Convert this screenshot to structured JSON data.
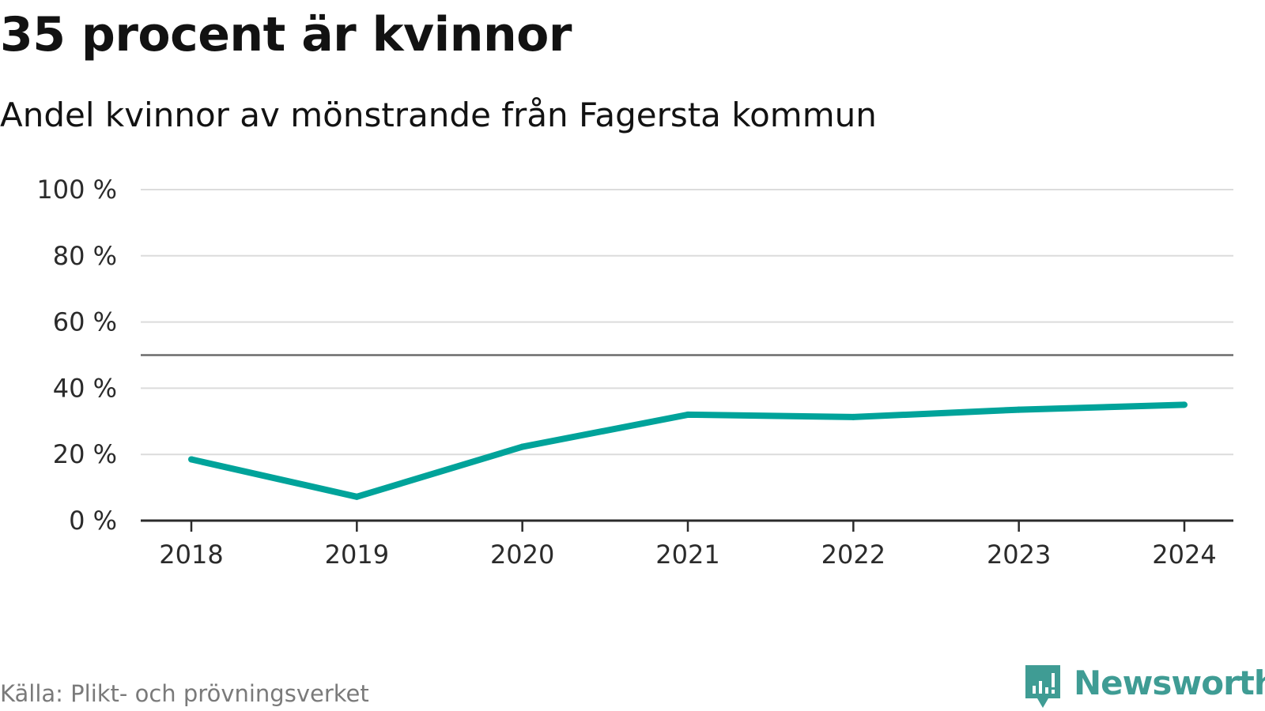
{
  "header": {
    "title": "35 procent är kvinnor",
    "subtitle": "Andel kvinnor av mönstrande från Fagersta kommun"
  },
  "footer": {
    "source": "Källa: Plikt- och prövningsverket",
    "brand": "Newsworthy",
    "brand_icon": "newsworthy-logo-icon"
  },
  "colors": {
    "series": "#00a39a",
    "grid": "#dcdcdc",
    "reference_line": "#6b6b6b",
    "axis": "#2b2b2b",
    "brand": "#3f9c94"
  },
  "chart_data": {
    "type": "line",
    "title": "35 procent är kvinnor",
    "subtitle": "Andel kvinnor av mönstrande från Fagersta kommun",
    "xlabel": "",
    "ylabel": "",
    "x": [
      "2018",
      "2019",
      "2020",
      "2021",
      "2022",
      "2023",
      "2024"
    ],
    "series": [
      {
        "name": "Andel kvinnor",
        "values": [
          18.5,
          7.2,
          22.3,
          32.0,
          31.3,
          33.5,
          35.0
        ]
      }
    ],
    "ylim": [
      0,
      100
    ],
    "yticks": [
      0,
      20,
      40,
      60,
      80,
      100
    ],
    "ytick_labels": [
      "0 %",
      "20 %",
      "40 %",
      "60 %",
      "80 %",
      "100 %"
    ],
    "reference_line": 50,
    "grid": true,
    "legend": "none",
    "source": "Källa: Plikt- och prövningsverket"
  }
}
